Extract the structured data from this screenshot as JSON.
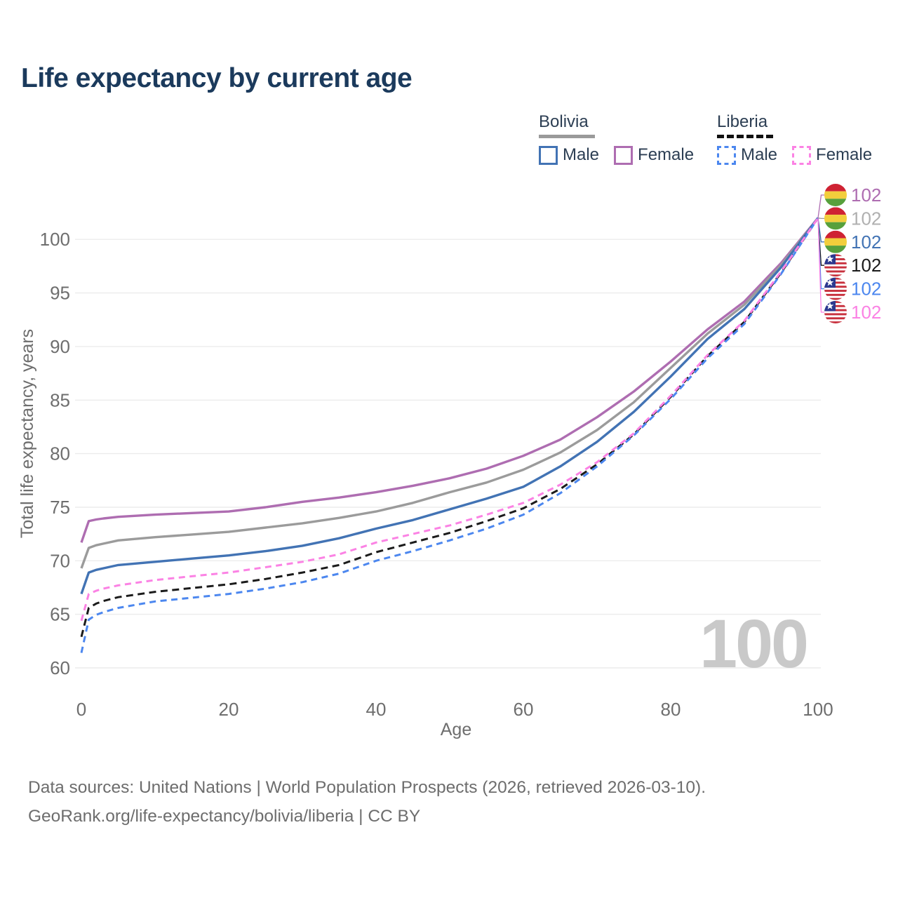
{
  "title": "Life expectancy by current age",
  "legend": {
    "groups": [
      {
        "country": "Bolivia",
        "line_style": "solid",
        "underline_color": "#9a9a9a",
        "items": [
          {
            "label": "Male",
            "color": "#4273b4",
            "style": "solid"
          },
          {
            "label": "Female",
            "color": "#ae6db1",
            "style": "solid"
          }
        ]
      },
      {
        "country": "Liberia",
        "line_style": "dashed",
        "underline_color": "#111111",
        "items": [
          {
            "label": "Male",
            "color": "#4c87ef",
            "style": "dashed"
          },
          {
            "label": "Female",
            "color": "#fb82e4",
            "style": "dashed"
          }
        ]
      }
    ]
  },
  "watermark": "100",
  "footer": {
    "line1": "Data sources: United Nations | World Population Prospects (2026, retrieved 2026-03-10).",
    "line2": "GeoRank.org/life-expectancy/bolivia/liberia | CC BY"
  },
  "chart_data": {
    "type": "line",
    "title": "Life expectancy by current age",
    "xlabel": "Age",
    "ylabel": "Total life expectancy, years",
    "xlim": [
      0,
      100
    ],
    "ylim": [
      59,
      103
    ],
    "x_ticks": [
      0,
      20,
      40,
      60,
      80,
      100
    ],
    "y_ticks": [
      60,
      65,
      70,
      75,
      80,
      85,
      90,
      95,
      100
    ],
    "grid": true,
    "legend_position": "top-right",
    "ages": [
      0,
      1,
      2,
      3,
      5,
      10,
      15,
      20,
      25,
      30,
      35,
      40,
      45,
      50,
      55,
      60,
      65,
      70,
      75,
      80,
      85,
      90,
      95,
      100
    ],
    "series": [
      {
        "name": "Bolivia Female",
        "country": "Bolivia",
        "sex": "Female",
        "color": "#ae6db1",
        "dash": "solid",
        "end_label": "102",
        "values": [
          71.7,
          73.7,
          73.85,
          73.95,
          74.1,
          74.3,
          74.45,
          74.6,
          75.0,
          75.5,
          75.9,
          76.4,
          77.0,
          77.7,
          78.6,
          79.8,
          81.3,
          83.4,
          85.8,
          88.6,
          91.6,
          94.2,
          97.8,
          102
        ]
      },
      {
        "name": "Bolivia Both sexes",
        "country": "Bolivia",
        "sex": "Both",
        "color": "#9b9b9b",
        "dash": "solid",
        "end_label": "102",
        "label_color": "#b0b0b0",
        "values": [
          69.3,
          71.2,
          71.45,
          71.6,
          71.9,
          72.2,
          72.45,
          72.7,
          73.1,
          73.5,
          74.0,
          74.6,
          75.4,
          76.4,
          77.3,
          78.5,
          80.1,
          82.2,
          84.8,
          88.0,
          91.2,
          93.9,
          97.6,
          102
        ]
      },
      {
        "name": "Bolivia Male",
        "country": "Bolivia",
        "sex": "Male",
        "color": "#4273b4",
        "dash": "solid",
        "end_label": "102",
        "values": [
          66.9,
          68.9,
          69.15,
          69.3,
          69.6,
          69.9,
          70.2,
          70.5,
          70.9,
          71.4,
          72.1,
          73.0,
          73.8,
          74.8,
          75.8,
          76.9,
          78.8,
          81.1,
          83.9,
          87.2,
          90.7,
          93.5,
          97.4,
          102
        ]
      },
      {
        "name": "Liberia Both sexes",
        "country": "Liberia",
        "sex": "Both",
        "color": "#1b1b1b",
        "dash": "dashed",
        "end_label": "102",
        "values": [
          62.9,
          65.6,
          66.0,
          66.25,
          66.6,
          67.1,
          67.45,
          67.8,
          68.3,
          68.9,
          69.6,
          70.8,
          71.7,
          72.6,
          73.7,
          74.9,
          76.7,
          79.0,
          81.8,
          85.3,
          89.1,
          92.3,
          96.9,
          102
        ]
      },
      {
        "name": "Liberia Male",
        "country": "Liberia",
        "sex": "Male",
        "color": "#4c87ef",
        "dash": "dashed",
        "end_label": "102",
        "values": [
          61.4,
          64.5,
          64.95,
          65.2,
          65.6,
          66.2,
          66.55,
          66.9,
          67.4,
          68.0,
          68.8,
          70.0,
          70.9,
          71.9,
          73.0,
          74.3,
          76.3,
          78.8,
          81.7,
          85.1,
          88.9,
          92.1,
          96.8,
          102
        ]
      },
      {
        "name": "Liberia Female",
        "country": "Liberia",
        "sex": "Female",
        "color": "#fb82e4",
        "dash": "dashed",
        "end_label": "102",
        "values": [
          64.4,
          66.9,
          67.2,
          67.4,
          67.7,
          68.2,
          68.55,
          68.9,
          69.4,
          69.9,
          70.6,
          71.7,
          72.5,
          73.3,
          74.3,
          75.4,
          77.1,
          79.2,
          81.9,
          85.4,
          89.2,
          92.4,
          97.0,
          102
        ]
      }
    ]
  }
}
